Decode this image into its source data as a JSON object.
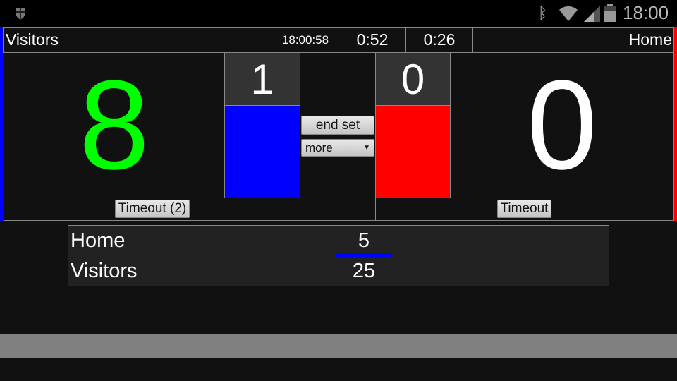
{
  "status_bar": {
    "time": "18:00",
    "icons": [
      "shield-icon",
      "bluetooth-icon",
      "wifi-icon",
      "signal-icon",
      "battery-icon"
    ]
  },
  "header": {
    "left_team": "Visitors",
    "clock": "18:00:58",
    "timer1": "0:52",
    "timer2": "0:26",
    "right_team": "Home"
  },
  "visitors": {
    "score": "8",
    "sets": "1",
    "color": "#0000ff",
    "score_color": "#00ff00",
    "timeout_label": "Timeout (2)"
  },
  "home": {
    "score": "0",
    "sets": "0",
    "color": "#ff0000",
    "score_color": "#ffffff",
    "timeout_label": "Timeout"
  },
  "controls": {
    "end_set": "end set",
    "more": "more"
  },
  "set_scores": [
    {
      "team": "Home",
      "score": "5"
    },
    {
      "team": "Visitors",
      "score": "25"
    }
  ]
}
